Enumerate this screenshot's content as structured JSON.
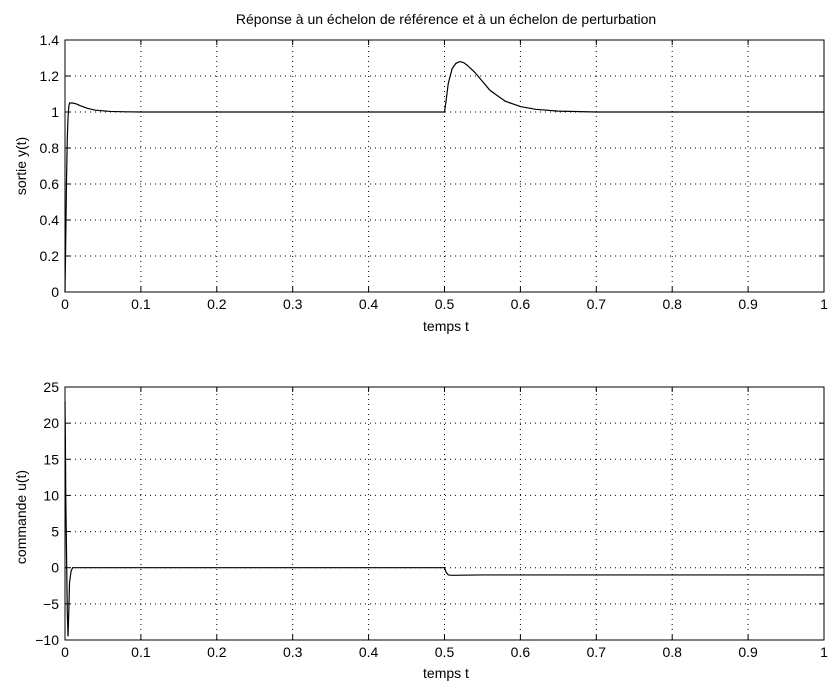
{
  "chart_data": [
    {
      "type": "line",
      "title": "Réponse à un échelon de référence et à un échelon de perturbation",
      "xlabel": "temps t",
      "ylabel": "sortie y(t)",
      "xlim": [
        0,
        1
      ],
      "ylim": [
        0,
        1.4
      ],
      "xticks": [
        "0",
        "0.1",
        "0.2",
        "0.3",
        "0.4",
        "0.5",
        "0.6",
        "0.7",
        "0.8",
        "0.9",
        "1"
      ],
      "yticks": [
        "0",
        "0.2",
        "0.4",
        "0.6",
        "0.8",
        "1",
        "1.2",
        "1.4"
      ],
      "grid": true,
      "series": [
        {
          "x": [
            0,
            0.001,
            0.002,
            0.003,
            0.004,
            0.005,
            0.006,
            0.008,
            0.01,
            0.015,
            0.02,
            0.03,
            0.04,
            0.06,
            0.08,
            0.1,
            0.2,
            0.3,
            0.4,
            0.5,
            0.502,
            0.505,
            0.51,
            0.515,
            0.52,
            0.525,
            0.53,
            0.54,
            0.55,
            0.56,
            0.58,
            0.6,
            0.62,
            0.65,
            0.7,
            0.8,
            0.9,
            1.0
          ],
          "y": [
            0,
            0.3,
            0.62,
            0.85,
            0.97,
            1.03,
            1.05,
            1.05,
            1.05,
            1.045,
            1.035,
            1.02,
            1.01,
            1.003,
            1.001,
            1.0,
            1.0,
            1.0,
            1.0,
            1.0,
            1.06,
            1.16,
            1.24,
            1.27,
            1.28,
            1.275,
            1.26,
            1.22,
            1.17,
            1.12,
            1.06,
            1.03,
            1.015,
            1.005,
            1.0,
            1.0,
            1.0,
            1.0
          ]
        }
      ]
    },
    {
      "type": "line",
      "xlabel": "temps t",
      "ylabel": "commande u(t)",
      "xlim": [
        0,
        1
      ],
      "ylim": [
        -10,
        25
      ],
      "xticks": [
        "0",
        "0.1",
        "0.2",
        "0.3",
        "0.4",
        "0.5",
        "0.6",
        "0.7",
        "0.8",
        "0.9",
        "1"
      ],
      "yticks": [
        "−10",
        "−5",
        "0",
        "5",
        "10",
        "15",
        "20",
        "25"
      ],
      "grid": true,
      "series": [
        {
          "x": [
            0,
            0.0005,
            0.001,
            0.002,
            0.003,
            0.004,
            0.005,
            0.006,
            0.008,
            0.01,
            0.1,
            0.2,
            0.3,
            0.4,
            0.5,
            0.502,
            0.505,
            0.51,
            0.55,
            0.6,
            0.7,
            0.8,
            0.9,
            1.0
          ],
          "y": [
            23,
            18,
            10,
            2,
            -6,
            -9.5,
            -6,
            -2,
            -0.5,
            0,
            0,
            0,
            0,
            0,
            0,
            -0.6,
            -1.0,
            -1.05,
            -1.0,
            -1.0,
            -1.0,
            -1.0,
            -1.0,
            -1.0
          ]
        }
      ]
    }
  ]
}
